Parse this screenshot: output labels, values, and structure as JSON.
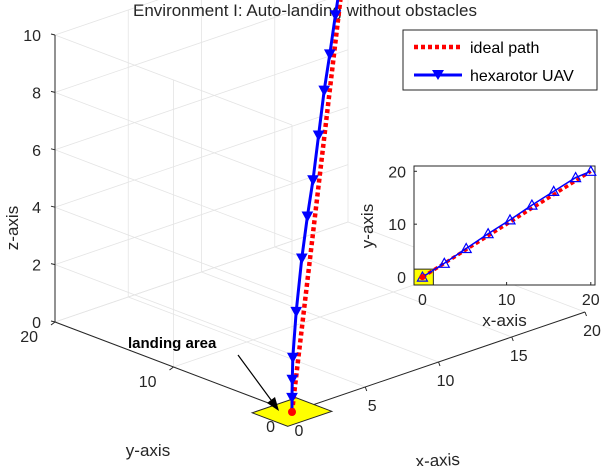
{
  "chart_data": [
    {
      "type": "line",
      "projection": "3d",
      "title": "Environment I: Auto-landing without obstacles",
      "xlabel": "x-axis",
      "ylabel": "y-axis",
      "zlabel": "z-axis",
      "xlim": [
        0,
        20
      ],
      "ylim": [
        0,
        20
      ],
      "zlim": [
        0,
        10
      ],
      "xticks": [
        "0",
        "5",
        "10",
        "15",
        "20"
      ],
      "yticks": [
        "0",
        "10",
        "20"
      ],
      "zticks": [
        "0",
        "2",
        "4",
        "6",
        "8",
        "10"
      ],
      "grid": true,
      "legend_position": "top-right",
      "series": [
        {
          "name": "ideal path",
          "color": "#ff0000",
          "style": "dotted",
          "points": [
            [
              0,
              0,
              0
            ],
            [
              20,
              20,
              10
            ]
          ]
        },
        {
          "name": "hexarotor UAV",
          "color": "#0000ff",
          "style": "solid",
          "marker": "down-triangle",
          "points": [
            [
              0,
              0,
              0
            ],
            [
              0,
              0,
              0.5
            ],
            [
              0.1,
              0.1,
              1.1
            ],
            [
              0.3,
              0.3,
              1.8
            ],
            [
              1.5,
              1.5,
              3.0
            ],
            [
              3.5,
              3.5,
              4.2
            ],
            [
              5.5,
              5.5,
              5.0
            ],
            [
              7.5,
              7.5,
              5.6
            ],
            [
              9.5,
              9.5,
              6.5
            ],
            [
              11.5,
              11.5,
              7.4
            ],
            [
              13.5,
              13.5,
              8.0
            ],
            [
              15.5,
              15.5,
              8.7
            ],
            [
              17.5,
              17.5,
              9.3
            ],
            [
              20,
              20,
              10
            ]
          ]
        }
      ],
      "annotations": [
        {
          "text": "landing area",
          "target": [
            0,
            0,
            0
          ],
          "color": "#ffff00"
        }
      ]
    },
    {
      "type": "line",
      "role": "inset",
      "xlabel": "x-axis",
      "ylabel": "y-axis",
      "xlim": [
        -1,
        20.5
      ],
      "ylim": [
        -1.5,
        21
      ],
      "xticks": [
        "0",
        "10",
        "20"
      ],
      "yticks": [
        "0",
        "10",
        "20"
      ],
      "grid": false,
      "series": [
        {
          "name": "ideal path",
          "color": "#ff0000",
          "style": "dotted",
          "points": [
            [
              0,
              0
            ],
            [
              20,
              20
            ]
          ]
        },
        {
          "name": "hexarotor UAV",
          "color": "#0000ff",
          "style": "solid",
          "marker": "up-triangle",
          "points": [
            [
              0,
              0
            ],
            [
              2.6,
              2.6
            ],
            [
              5.2,
              5.4
            ],
            [
              7.8,
              8.2
            ],
            [
              10.4,
              10.8
            ],
            [
              13,
              13.6
            ],
            [
              15.6,
              16.2
            ],
            [
              18.2,
              18.8
            ],
            [
              20,
              20
            ]
          ]
        }
      ]
    }
  ]
}
